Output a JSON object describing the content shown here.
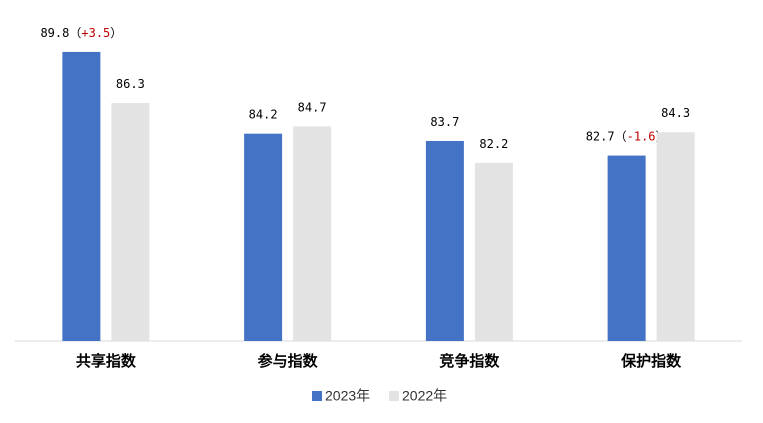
{
  "chart_data": {
    "type": "bar",
    "categories": [
      "共享指数",
      "参与指数",
      "竞争指数",
      "保护指数"
    ],
    "series": [
      {
        "name": "2023年",
        "color": "#4472c4",
        "values": [
          89.8,
          84.2,
          83.7,
          82.7
        ]
      },
      {
        "name": "2022年",
        "color": "#e3e3e3",
        "values": [
          86.3,
          84.7,
          82.2,
          84.3
        ]
      }
    ],
    "annotations": [
      {
        "category": "共享指数",
        "open": "（",
        "text": "+3.5",
        "close": "）",
        "color": "#c00000"
      },
      {
        "category": "保护指数",
        "open": "（",
        "text": "-1.6",
        "close": "）",
        "color": "#c00000"
      }
    ],
    "ylim": [
      70,
      90
    ],
    "legend": "bottom"
  }
}
